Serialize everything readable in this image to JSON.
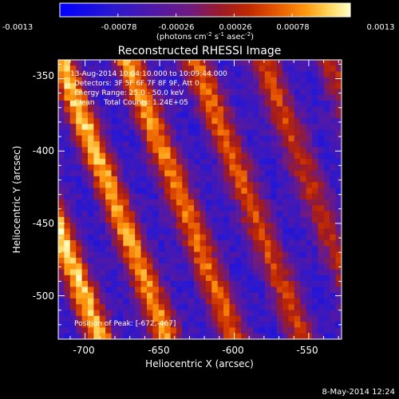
{
  "colorbar": {
    "tick_labels": [
      "-0.0013",
      "-0.00078",
      "-0.00026",
      "0.00026",
      "0.00078",
      "0.0013"
    ],
    "min": -0.0013,
    "max": 0.0013,
    "unit_prefix": "(photons cm",
    "unit_exp1": "-2",
    "unit_mid": " s",
    "unit_exp2": "-1",
    "unit_mid2": " asec",
    "unit_exp3": "-2",
    "unit_suffix": ")",
    "colormap_stops": [
      "#0000ff",
      "#3020c0",
      "#5a1a9a",
      "#7a2070",
      "#a02800",
      "#d04a00",
      "#f07a00",
      "#ffb020",
      "#ffe880",
      "#ffffff"
    ]
  },
  "plot": {
    "title": "Reconstructed RHESSI Image",
    "xlabel": "Heliocentric X (arcsec)",
    "ylabel": "Heliocentric Y (arcsec)",
    "xticks": [
      "-700",
      "-650",
      "-600",
      "-550"
    ],
    "yticks": [
      "-350",
      "-400",
      "-450",
      "-500"
    ],
    "xlim": [
      -718,
      -528
    ],
    "ylim": [
      -530,
      -337
    ]
  },
  "info": {
    "line1": "13-Aug-2014 10:04:10.000 to 10:09:44.000",
    "line2": "Detectors: 3F 5F 6F 7F 8F 9F, Att 0",
    "line3": "Energy Range: 25.0 - 50.0 keV",
    "line4": "Clean    Total Counts: 1.24E+05",
    "peak": "Position of Peak: [-672,-467]"
  },
  "footer": {
    "timestamp": "8-May-2014 12:24"
  }
}
